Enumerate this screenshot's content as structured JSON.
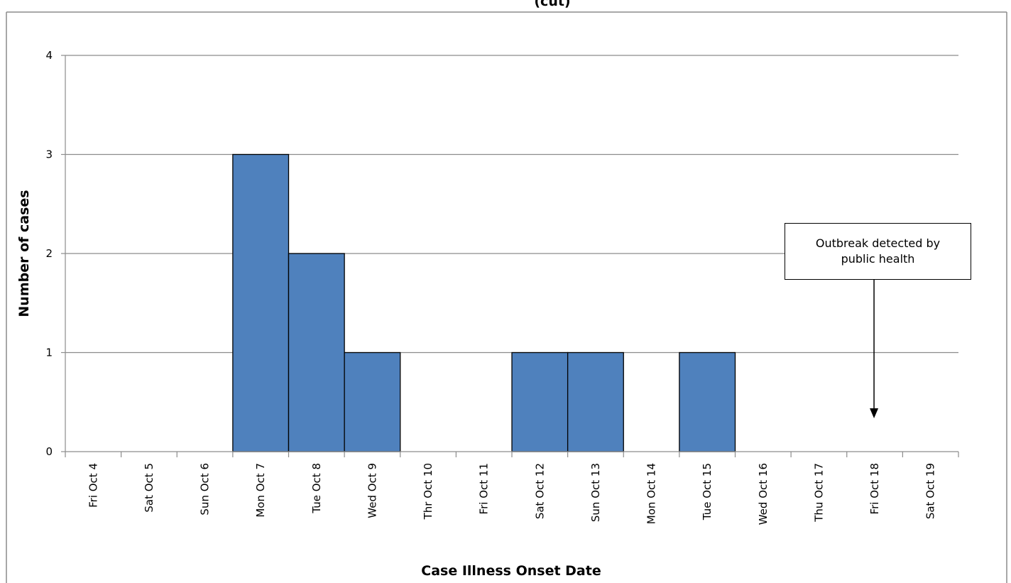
{
  "chart_data": {
    "type": "bar",
    "title": "(cut)",
    "xlabel": "Case Illness Onset Date",
    "ylabel": "Number of cases",
    "categories": [
      "Fri Oct 4",
      "Sat Oct 5",
      "Sun Oct 6",
      "Mon Oct 7",
      "Tue Oct 8",
      "Wed Oct 9",
      "Thr Oct 10",
      "Fri Oct 11",
      "Sat Oct 12",
      "Sun Oct 13",
      "Mon Oct 14",
      "Tue Oct 15",
      "Wed Oct 16",
      "Thu Oct 17",
      "Fri Oct 18",
      "Sat Oct 19"
    ],
    "values": [
      0,
      0,
      0,
      3,
      2,
      1,
      0,
      0,
      1,
      1,
      0,
      1,
      0,
      0,
      0,
      0
    ],
    "ylim": [
      0,
      4
    ],
    "yticks": [
      0,
      1,
      2,
      3,
      4
    ],
    "grid": true,
    "legend": "none",
    "bar_color": "#4f81bd",
    "annotation": {
      "text": "Outbreak detected by public health",
      "category": "Fri Oct 18"
    }
  }
}
